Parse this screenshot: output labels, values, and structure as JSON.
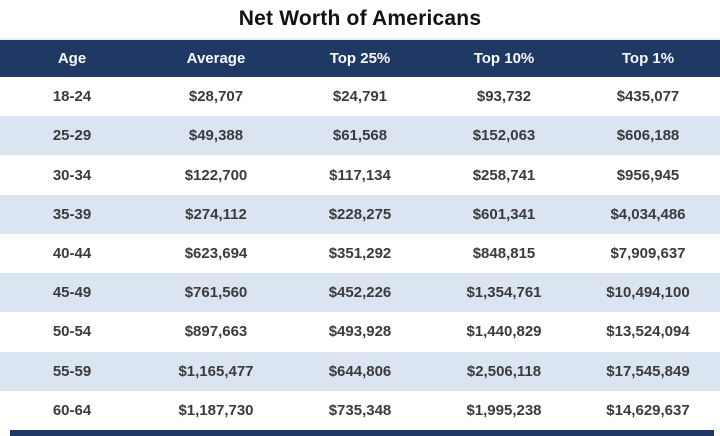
{
  "title": "Net Worth of Americans",
  "chart_data": {
    "type": "table",
    "title": "Net Worth of Americans",
    "columns": [
      "Age",
      "Average",
      "Top 25%",
      "Top 10%",
      "Top 1%"
    ],
    "rows": [
      [
        "18-24",
        "$28,707",
        "$24,791",
        "$93,732",
        "$435,077"
      ],
      [
        "25-29",
        "$49,388",
        "$61,568",
        "$152,063",
        "$606,188"
      ],
      [
        "30-34",
        "$122,700",
        "$117,134",
        "$258,741",
        "$956,945"
      ],
      [
        "35-39",
        "$274,112",
        "$228,275",
        "$601,341",
        "$4,034,486"
      ],
      [
        "40-44",
        "$623,694",
        "$351,292",
        "$848,815",
        "$7,909,637"
      ],
      [
        "45-49",
        "$761,560",
        "$452,226",
        "$1,354,761",
        "$10,494,100"
      ],
      [
        "50-54",
        "$897,663",
        "$493,928",
        "$1,440,829",
        "$13,524,094"
      ],
      [
        "55-59",
        "$1,165,477",
        "$644,806",
        "$2,506,118",
        "$17,545,849"
      ],
      [
        "60-64",
        "$1,187,730",
        "$735,348",
        "$1,995,238",
        "$14,629,637"
      ]
    ],
    "layout": {
      "banded_rows": true,
      "header_position": "top",
      "column_alignment": "center"
    }
  },
  "colors": {
    "header_bg": "#203864",
    "header_text": "#f7faff",
    "band_bg": "#dae5f1",
    "row_bg": "#ffffff",
    "body_text": "#3b3b3b",
    "title_text": "#121212"
  }
}
